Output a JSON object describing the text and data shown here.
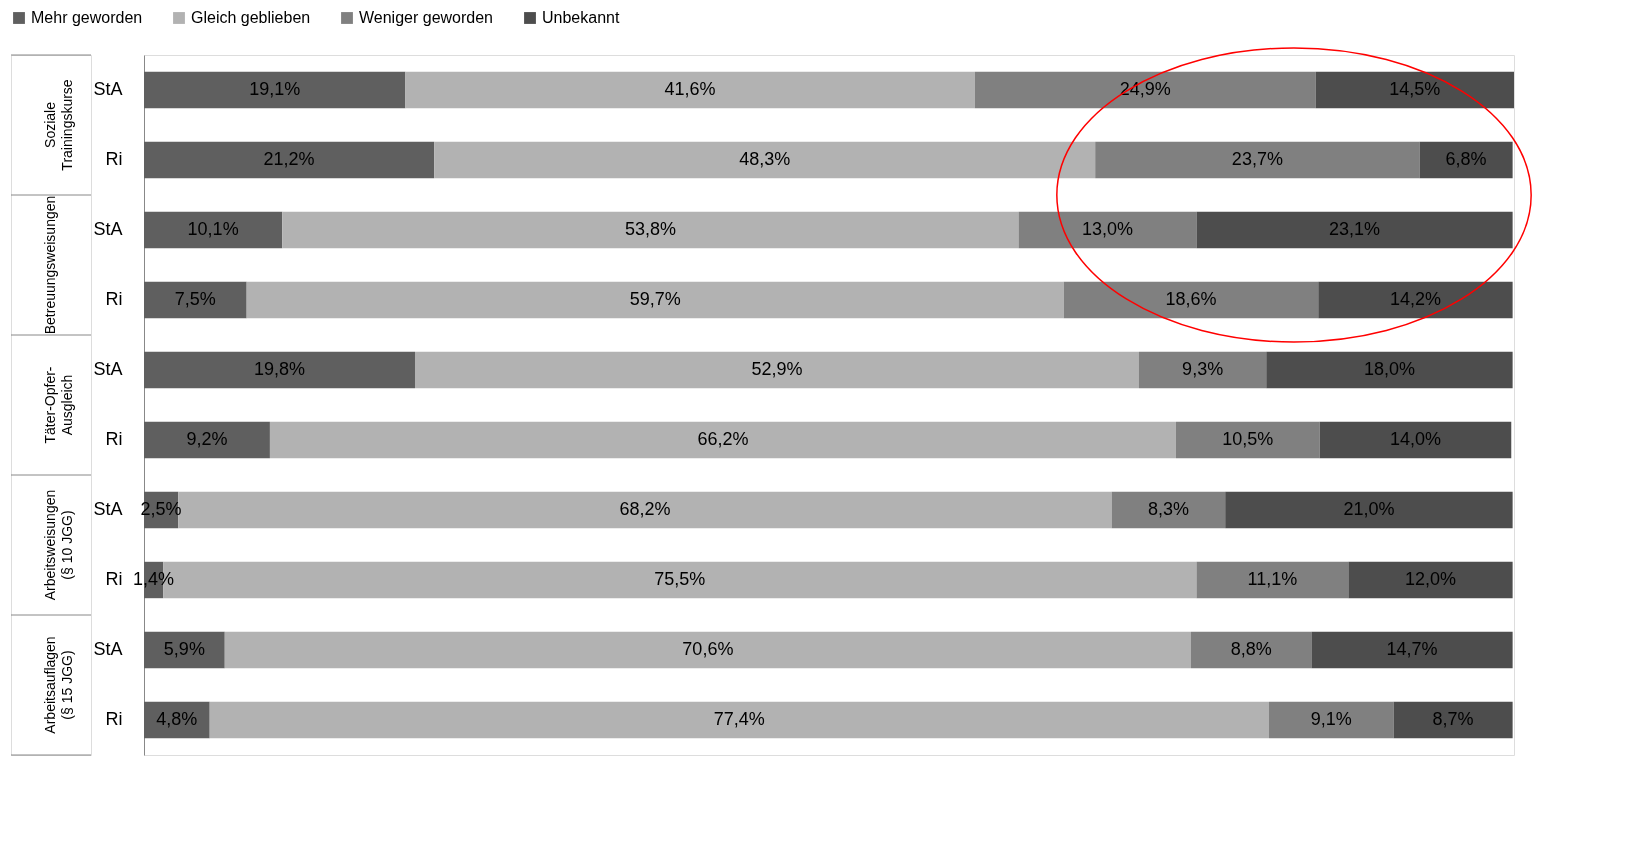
{
  "chart_data": {
    "type": "bar",
    "orientation": "horizontal",
    "stacked": true,
    "legend": "top",
    "categories": [
      "StA",
      "Ri",
      "StA",
      "Ri",
      "StA",
      "Ri",
      "StA",
      "Ri",
      "StA",
      "Ri"
    ],
    "annotations": [
      "Soziale Trainingskurse",
      "Betreuungsweisungen",
      "Täter-Opfer-Ausgleich",
      "Arbeitsweisungen (§ 10 JGG)",
      "Arbeitsauflagen (§ 15 JGG)"
    ],
    "series": [
      {
        "name": "Mehr geworden",
        "color": "#5f5f5f",
        "values": [
          19.1,
          21.2,
          10.1,
          7.5,
          19.8,
          9.2,
          2.5,
          1.4,
          5.9,
          4.8
        ],
        "value_labels": [
          "19,1%",
          "21,2%",
          "10,1%",
          "7,5%",
          "19,8%",
          "9,2%",
          "2,5%",
          "1,4%",
          "5,9%",
          "4,8%"
        ]
      },
      {
        "name": "Gleich geblieben",
        "color": "#b2b2b2",
        "values": [
          41.6,
          48.3,
          53.8,
          59.7,
          52.9,
          66.2,
          68.2,
          75.5,
          70.6,
          77.4
        ],
        "value_labels": [
          "41,6%",
          "48,3%",
          "53,8%",
          "59,7%",
          "52,9%",
          "66,2%",
          "68,2%",
          "75,5%",
          "70,6%",
          "77,4%"
        ]
      },
      {
        "name": "Weniger geworden",
        "color": "#808080",
        "values": [
          24.9,
          23.7,
          13.0,
          18.6,
          9.3,
          10.5,
          8.3,
          11.1,
          8.8,
          9.1
        ],
        "value_labels": [
          "24,9%",
          "23,7%",
          "13,0%",
          "18,6%",
          "9,3%",
          "10,5%",
          "8,3%",
          "11,1%",
          "8,8%",
          "9,1%"
        ]
      },
      {
        "name": "Unbekannt",
        "color": "#4d4d4d",
        "values": [
          14.5,
          6.8,
          23.1,
          14.2,
          18.0,
          14.0,
          21.0,
          12.0,
          14.7,
          8.7
        ],
        "value_labels": [
          "14,5%",
          "6,8%",
          "23,1%",
          "14,2%",
          "18,0%",
          "14,0%",
          "21,0%",
          "12,0%",
          "14,7%",
          "8,7%"
        ]
      }
    ]
  }
}
